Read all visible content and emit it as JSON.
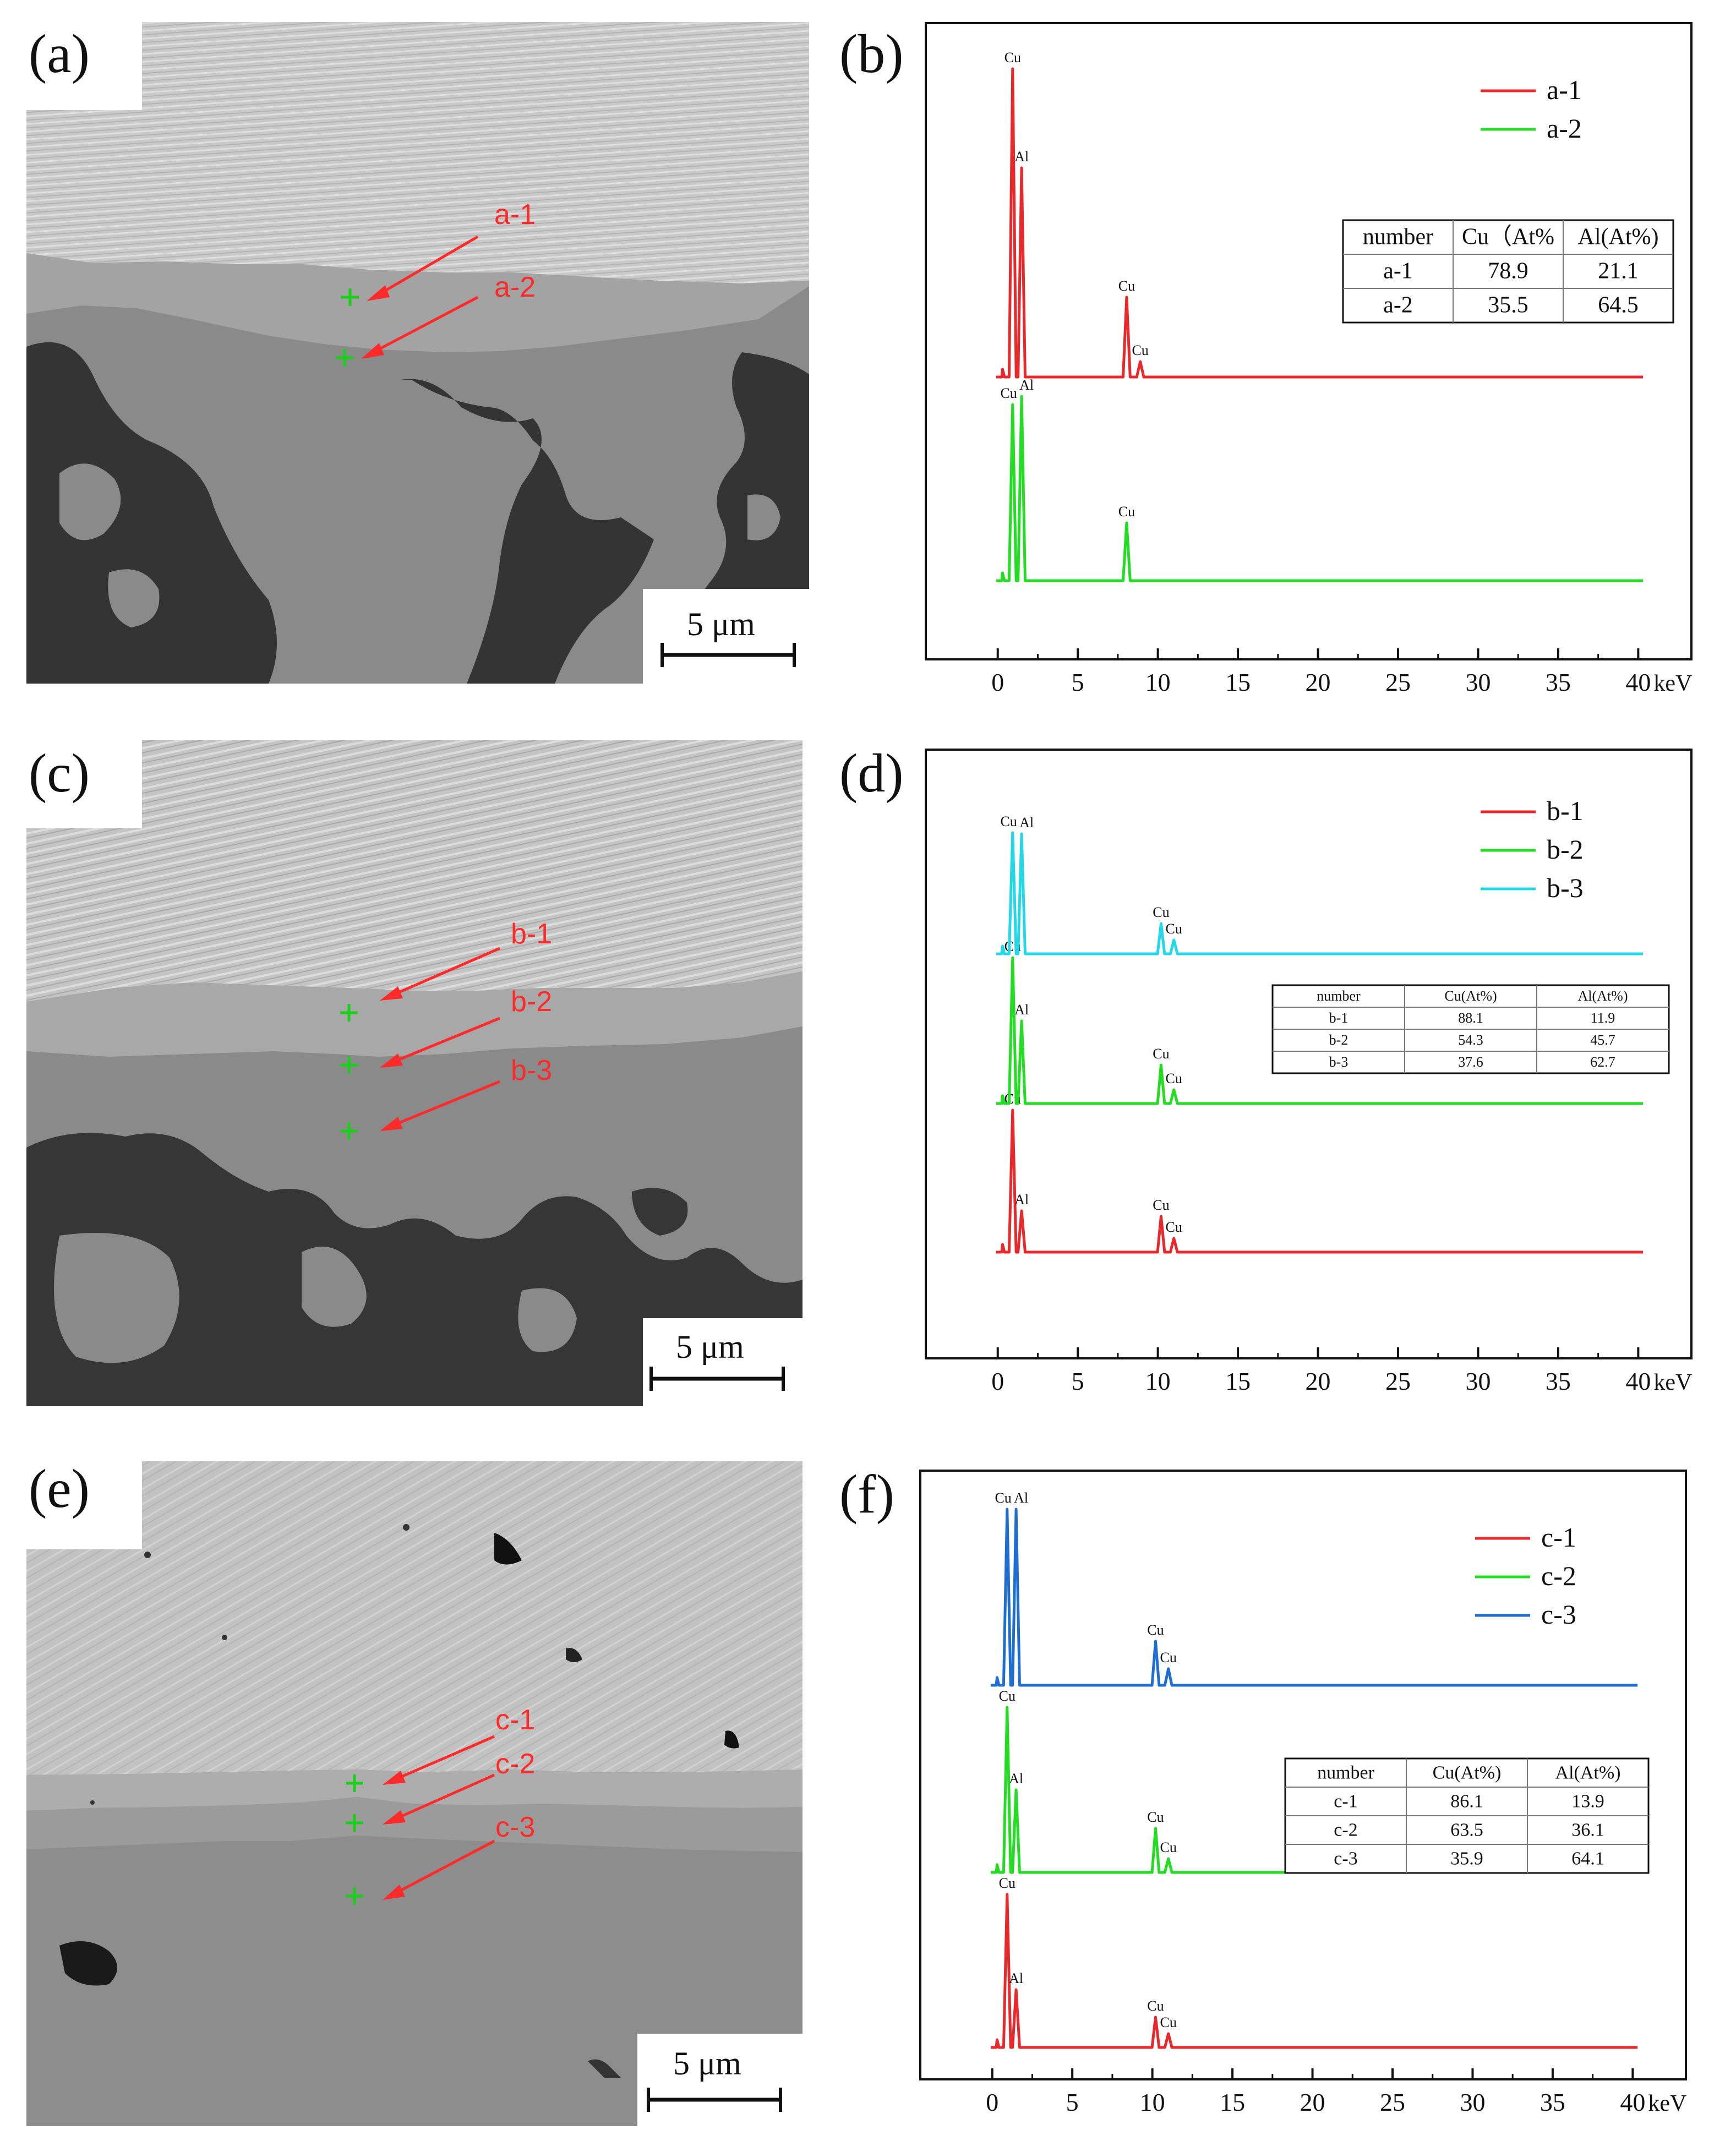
{
  "panels": [
    {
      "id": "a",
      "label": "(a)"
    },
    {
      "id": "b",
      "label": "(b)"
    },
    {
      "id": "c",
      "label": "(c)"
    },
    {
      "id": "d",
      "label": "(d)"
    },
    {
      "id": "e",
      "label": "(e)"
    },
    {
      "id": "f",
      "label": "(f)"
    }
  ],
  "sem_images": [
    {
      "panel": "a",
      "scale_bar": "5 μm",
      "points": [
        "a-1",
        "a-2"
      ]
    },
    {
      "panel": "c",
      "scale_bar": "5 μm",
      "points": [
        "b-1",
        "b-2",
        "b-3"
      ]
    },
    {
      "panel": "e",
      "scale_bar": "5 μm",
      "points": [
        "c-1",
        "c-2",
        "c-3"
      ]
    }
  ],
  "colors": {
    "red": "#e8282a",
    "green": "#22dd22",
    "cyan": "#22d8e8",
    "blue": "#1e6ed2",
    "marker_green": "#18d018",
    "annotation_red": "#ff2a2a"
  },
  "chart_data": [
    {
      "panel": "b",
      "type": "line",
      "x_unit": "keV",
      "xlim": [
        -2.5,
        41.5
      ],
      "xticks": [
        0,
        5,
        10,
        15,
        20,
        25,
        30,
        35,
        40
      ],
      "legend_position": "top-right",
      "series": [
        {
          "name": "a-1",
          "color": "#e8282a",
          "peaks": [
            {
              "x": 0.93,
              "label": "Cu"
            },
            {
              "x": 1.49,
              "label": "Al"
            },
            {
              "x": 8.05,
              "label": "Cu"
            },
            {
              "x": 8.9,
              "label": "Cu"
            }
          ]
        },
        {
          "name": "a-2",
          "color": "#22dd22",
          "peaks": [
            {
              "x": 0.93,
              "label": "Cu"
            },
            {
              "x": 1.49,
              "label": "Al"
            },
            {
              "x": 8.05,
              "label": "Cu"
            }
          ]
        }
      ],
      "table": {
        "columns": [
          "number",
          "Cu（At%",
          "Al(At%)"
        ],
        "rows": [
          [
            "a-1",
            "78.9",
            "21.1"
          ],
          [
            "a-2",
            "35.5",
            "64.5"
          ]
        ]
      }
    },
    {
      "panel": "d",
      "type": "line",
      "x_unit": "keV",
      "xlim": [
        -2.5,
        41.5
      ],
      "xticks": [
        0,
        5,
        10,
        15,
        20,
        25,
        30,
        35,
        40
      ],
      "legend_position": "top-right",
      "series": [
        {
          "name": "b-1",
          "color": "#e8282a",
          "peaks": [
            {
              "x": 0.93,
              "label": "Cu"
            },
            {
              "x": 1.49,
              "label": "Al"
            },
            {
              "x": 10.2,
              "label": "Cu"
            },
            {
              "x": 11.0,
              "label": "Cu"
            }
          ]
        },
        {
          "name": "b-2",
          "color": "#22dd22",
          "peaks": [
            {
              "x": 0.93,
              "label": "Cu"
            },
            {
              "x": 1.49,
              "label": "Al"
            },
            {
              "x": 10.2,
              "label": "Cu"
            },
            {
              "x": 11.0,
              "label": "Cu"
            }
          ]
        },
        {
          "name": "b-3",
          "color": "#22d8e8",
          "peaks": [
            {
              "x": 0.93,
              "label": "Cu"
            },
            {
              "x": 1.49,
              "label": "Al"
            },
            {
              "x": 10.2,
              "label": "Cu"
            },
            {
              "x": 11.0,
              "label": "Cu"
            }
          ]
        }
      ],
      "table": {
        "columns": [
          "number",
          "Cu(At%)",
          "Al(At%)"
        ],
        "rows": [
          [
            "b-1",
            "88.1",
            "11.9"
          ],
          [
            "b-2",
            "54.3",
            "45.7"
          ],
          [
            "b-3",
            "37.6",
            "62.7"
          ]
        ]
      }
    },
    {
      "panel": "f",
      "type": "line",
      "x_unit": "keV",
      "xlim": [
        -2.5,
        41.5
      ],
      "xticks": [
        0,
        5,
        10,
        15,
        20,
        25,
        30,
        35,
        40
      ],
      "legend_position": "top-right",
      "series": [
        {
          "name": "c-1",
          "color": "#e8282a",
          "peaks": [
            {
              "x": 0.93,
              "label": "Cu"
            },
            {
              "x": 1.49,
              "label": "Al"
            },
            {
              "x": 10.2,
              "label": "Cu"
            },
            {
              "x": 11.0,
              "label": "Cu"
            }
          ]
        },
        {
          "name": "c-2",
          "color": "#22dd22",
          "peaks": [
            {
              "x": 0.93,
              "label": "Cu"
            },
            {
              "x": 1.49,
              "label": "Al"
            },
            {
              "x": 10.2,
              "label": "Cu"
            },
            {
              "x": 11.0,
              "label": "Cu"
            }
          ]
        },
        {
          "name": "c-3",
          "color": "#1e6ed2",
          "peaks": [
            {
              "x": 0.93,
              "label": "Cu"
            },
            {
              "x": 1.49,
              "label": "Al"
            },
            {
              "x": 10.2,
              "label": "Cu"
            },
            {
              "x": 11.0,
              "label": "Cu"
            }
          ]
        }
      ],
      "table": {
        "columns": [
          "number",
          "Cu(At%)",
          "Al(At%)"
        ],
        "rows": [
          [
            "c-1",
            "86.1",
            "13.9"
          ],
          [
            "c-2",
            "63.5",
            "36.1"
          ],
          [
            "c-3",
            "35.9",
            "64.1"
          ]
        ]
      }
    }
  ]
}
